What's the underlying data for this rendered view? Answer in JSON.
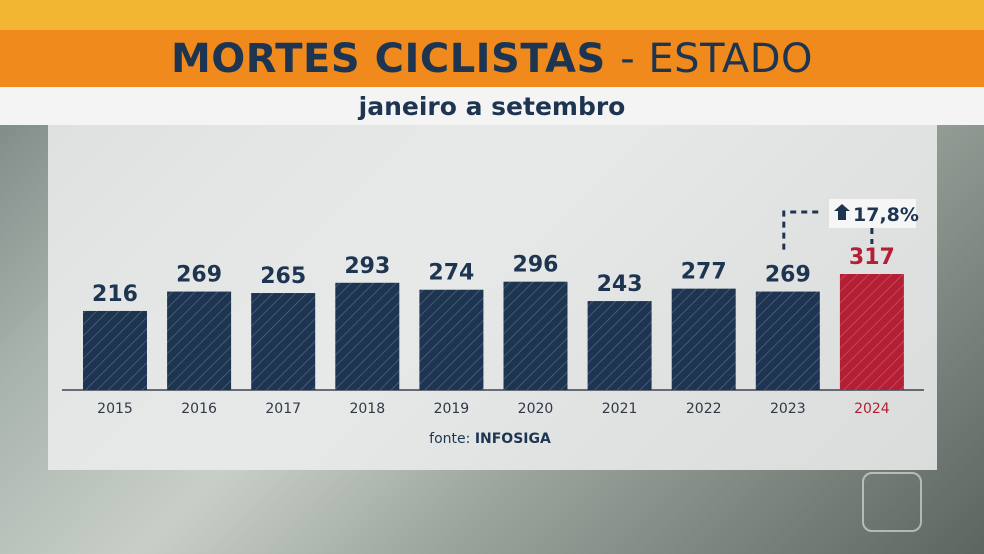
{
  "header": {
    "title_bold": "MORTES CICLISTAS",
    "title_rest": "- ESTADO",
    "subtitle": "janeiro a setembro"
  },
  "chart_data": {
    "type": "bar",
    "title": "MORTES CICLISTAS - ESTADO",
    "subtitle": "janeiro a setembro",
    "categories": [
      "2015",
      "2016",
      "2017",
      "2018",
      "2019",
      "2020",
      "2021",
      "2022",
      "2023",
      "2024"
    ],
    "values": [
      216,
      269,
      265,
      293,
      274,
      296,
      243,
      277,
      269,
      317
    ],
    "colors": {
      "default": "#1e3552",
      "highlight": "#b51f35",
      "highlight_category": "2024"
    },
    "annotation": {
      "text": "17,8%",
      "icon": "arrow-up-icon",
      "from": "2023",
      "to": "2024"
    },
    "ylim": [
      0,
      317
    ],
    "grid": false,
    "source": {
      "label": "fonte:",
      "name": "INFOSIGA"
    }
  }
}
